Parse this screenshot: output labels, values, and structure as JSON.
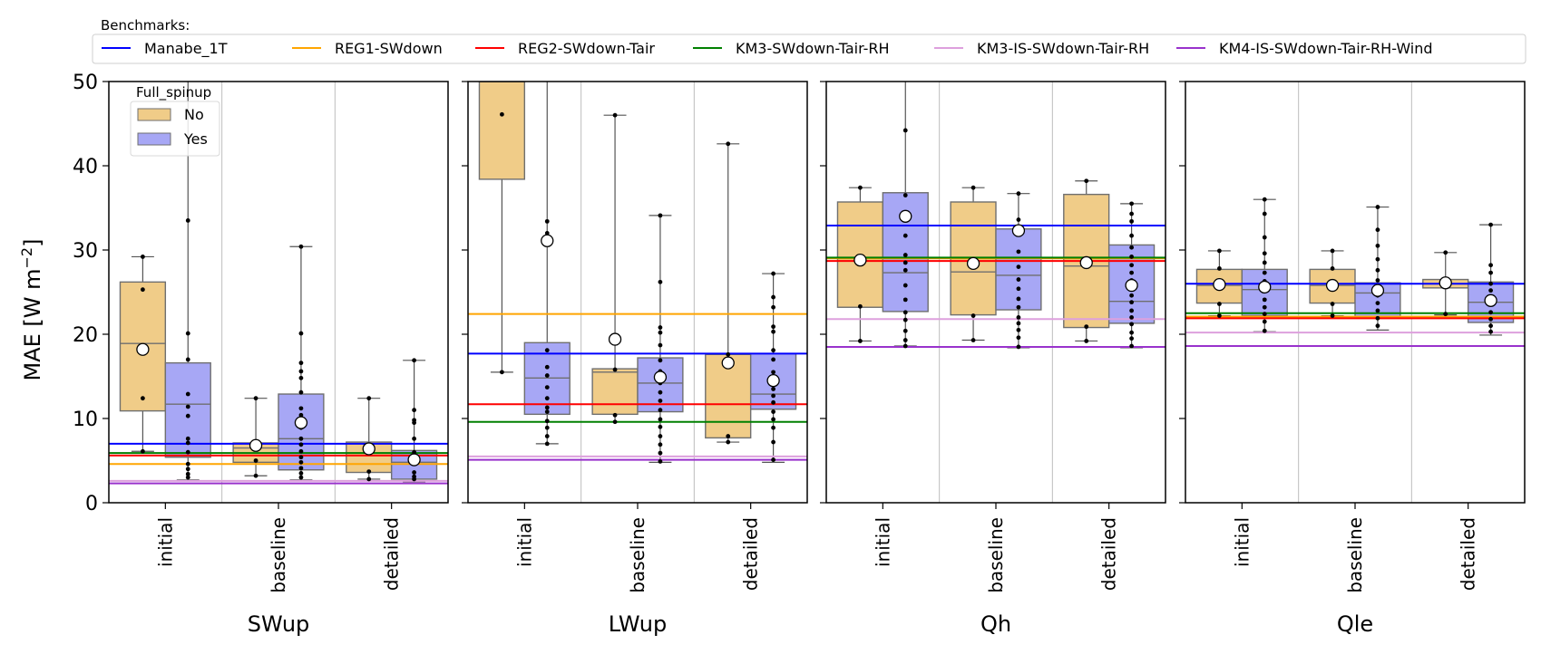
{
  "chart_data": {
    "type": "box",
    "ylabel": "MAE [W m$^{-2}$]",
    "ylabel_text": "MAE [W m",
    "ylabel_sup": "−2",
    "ylabel_close": "]",
    "ylim": [
      0,
      50
    ],
    "yticks": [
      "0",
      "10",
      "20",
      "30",
      "40",
      "50"
    ],
    "categories": [
      "initial",
      "baseline",
      "detailed"
    ],
    "benchmark_legend": {
      "title": "Benchmarks:",
      "placement": "top",
      "entries": [
        {
          "name": "Manabe_1T",
          "color": "#0000ff"
        },
        {
          "name": "REG1-SWdown",
          "color": "#ffa500"
        },
        {
          "name": "REG2-SWdown-Tair",
          "color": "#ff0000"
        },
        {
          "name": "KM3-SWdown-Tair-RH",
          "color": "#008000"
        },
        {
          "name": "KM3-IS-SWdown-Tair-RH",
          "color": "#dda0dd"
        },
        {
          "name": "KM4-IS-SWdown-Tair-RH-Wind",
          "color": "#9932cc"
        }
      ]
    },
    "hue_legend": {
      "title": "Full_spinup",
      "placement": "upper-left of first panel",
      "entries": [
        {
          "name": "No",
          "color": "#f0cc88"
        },
        {
          "name": "Yes",
          "color": "#a7a7f5"
        }
      ]
    },
    "panels": [
      {
        "xlabel": "SWup",
        "benchmarks": [
          7.0,
          4.6,
          5.6,
          5.9,
          2.6,
          2.3
        ],
        "boxes": [
          {
            "category": "initial",
            "hue": "No",
            "q1": 10.9,
            "median": 18.9,
            "q3": 26.2,
            "whisker_low": 6.1,
            "whisker_high": 29.2,
            "mean": 18.2,
            "points": [
              29.2,
              25.3,
              12.4,
              6.1
            ]
          },
          {
            "category": "initial",
            "hue": "Yes",
            "q1": 5.4,
            "median": 11.7,
            "q3": 16.6,
            "whisker_low": 2.7,
            "whisker_high": 50,
            "mean": null,
            "points": [
              33.5,
              20.1,
              17.0,
              12.9,
              11.4,
              10.3,
              7.6,
              7.1,
              6.0,
              4.6,
              4.0,
              3.4,
              3.0
            ]
          },
          {
            "category": "baseline",
            "hue": "No",
            "q1": 4.8,
            "median": 6.5,
            "q3": 7.1,
            "whisker_low": 3.2,
            "whisker_high": 12.4,
            "mean": 6.8,
            "points": [
              12.4,
              7.0,
              6.6,
              5.0,
              3.2
            ]
          },
          {
            "category": "baseline",
            "hue": "Yes",
            "q1": 3.9,
            "median": 7.6,
            "q3": 12.9,
            "whisker_low": 2.7,
            "whisker_high": 30.4,
            "mean": 9.5,
            "points": [
              30.4,
              20.1,
              16.6,
              15.6,
              14.8,
              13.1,
              11.2,
              10.4,
              8.9,
              7.6,
              6.9,
              6.1,
              5.4,
              4.8,
              4.1,
              3.5,
              3.0
            ]
          },
          {
            "category": "detailed",
            "hue": "No",
            "q1": 3.6,
            "median": 5.9,
            "q3": 7.2,
            "whisker_low": 2.8,
            "whisker_high": 12.4,
            "mean": 6.4,
            "points": [
              12.4,
              6.9,
              6.5,
              3.7,
              2.8
            ]
          },
          {
            "category": "detailed",
            "hue": "Yes",
            "q1": 2.8,
            "median": 4.8,
            "q3": 6.2,
            "whisker_low": 2.5,
            "whisker_high": 16.9,
            "mean": 5.1,
            "points": [
              16.9,
              11.0,
              9.8,
              9.5,
              7.6,
              6.0,
              5.2,
              4.6,
              3.6,
              3.1,
              2.8
            ]
          }
        ]
      },
      {
        "xlabel": "LWup",
        "benchmarks": [
          17.7,
          22.4,
          11.7,
          9.6,
          5.5,
          5.1
        ],
        "boxes": [
          {
            "category": "initial",
            "hue": "No",
            "q1": 38.4,
            "median": 50,
            "q3": 50,
            "whisker_low": 15.5,
            "whisker_high": 50,
            "mean": null,
            "points": [
              46.1,
              15.5
            ]
          },
          {
            "category": "initial",
            "hue": "Yes",
            "q1": 10.5,
            "median": 14.8,
            "q3": 19.0,
            "whisker_low": 7.0,
            "whisker_high": 50,
            "mean": 31.1,
            "points": [
              33.4,
              32.0,
              18.1,
              16.1,
              15.1,
              13.7,
              12.4,
              11.3,
              10.8,
              9.7,
              8.9,
              7.9,
              7.0
            ]
          },
          {
            "category": "baseline",
            "hue": "No",
            "q1": 10.5,
            "median": 15.5,
            "q3": 15.9,
            "whisker_low": 9.6,
            "whisker_high": 46.0,
            "mean": 19.4,
            "points": [
              46.0,
              15.8,
              10.4,
              9.6
            ]
          },
          {
            "category": "baseline",
            "hue": "Yes",
            "q1": 10.8,
            "median": 14.2,
            "q3": 17.2,
            "whisker_low": 4.8,
            "whisker_high": 34.1,
            "mean": 14.9,
            "points": [
              34.1,
              26.2,
              20.8,
              20.2,
              18.7,
              16.9,
              15.6,
              14.2,
              13.1,
              12.1,
              11.0,
              9.9,
              9.0,
              7.9,
              6.9,
              5.9,
              4.9
            ]
          },
          {
            "category": "detailed",
            "hue": "No",
            "q1": 7.7,
            "median": 17.6,
            "q3": 17.7,
            "whisker_low": 7.2,
            "whisker_high": 42.6,
            "mean": 16.6,
            "points": [
              42.6,
              17.6,
              7.9,
              7.2
            ]
          },
          {
            "category": "detailed",
            "hue": "Yes",
            "q1": 11.1,
            "median": 12.9,
            "q3": 17.7,
            "whisker_low": 4.8,
            "whisker_high": 27.2,
            "mean": 14.5,
            "points": [
              27.2,
              24.4,
              23.2,
              20.9,
              20.3,
              18.1,
              17.0,
              15.5,
              14.5,
              13.5,
              12.7,
              11.9,
              10.8,
              9.9,
              8.9,
              7.2,
              5.1
            ]
          }
        ]
      },
      {
        "xlabel": "Qh",
        "benchmarks": [
          32.9,
          29.0,
          28.7,
          29.1,
          21.8,
          18.5
        ],
        "boxes": [
          {
            "category": "initial",
            "hue": "No",
            "q1": 23.2,
            "median": 28.7,
            "q3": 35.7,
            "whisker_low": 19.2,
            "whisker_high": 37.4,
            "mean": 28.8,
            "points": [
              37.4,
              28.8,
              23.3,
              19.2
            ]
          },
          {
            "category": "initial",
            "hue": "Yes",
            "q1": 22.7,
            "median": 27.3,
            "q3": 36.8,
            "whisker_low": 18.6,
            "whisker_high": 50,
            "mean": 34.0,
            "points": [
              44.2,
              36.5,
              34.1,
              31.7,
              29.4,
              28.5,
              27.6,
              25.8,
              24.1,
              22.6,
              21.7,
              20.4,
              19.3,
              18.6
            ]
          },
          {
            "category": "baseline",
            "hue": "No",
            "q1": 22.3,
            "median": 27.4,
            "q3": 35.7,
            "whisker_low": 19.3,
            "whisker_high": 37.4,
            "mean": 28.4,
            "points": [
              37.4,
              28.3,
              22.2,
              19.3
            ]
          },
          {
            "category": "baseline",
            "hue": "Yes",
            "q1": 22.9,
            "median": 27.0,
            "q3": 32.5,
            "whisker_low": 18.4,
            "whisker_high": 36.7,
            "mean": 32.3,
            "points": [
              36.7,
              33.6,
              31.9,
              29.8,
              28.0,
              26.5,
              25.4,
              24.2,
              23.2,
              22.0,
              21.3,
              20.5,
              19.6,
              18.5
            ]
          },
          {
            "category": "detailed",
            "hue": "No",
            "q1": 20.8,
            "median": 28.1,
            "q3": 36.6,
            "whisker_low": 19.2,
            "whisker_high": 38.2,
            "mean": 28.5,
            "points": [
              38.2,
              28.4,
              20.9,
              19.2
            ]
          },
          {
            "category": "detailed",
            "hue": "Yes",
            "q1": 21.3,
            "median": 23.9,
            "q3": 30.6,
            "whisker_low": 18.4,
            "whisker_high": 35.5,
            "mean": 25.8,
            "points": [
              35.5,
              34.3,
              33.4,
              31.7,
              30.3,
              29.2,
              28.2,
              27.3,
              26.4,
              25.5,
              24.6,
              23.8,
              22.8,
              22.0,
              21.2,
              20.2,
              19.5,
              18.6
            ]
          }
        ]
      },
      {
        "xlabel": "Qle",
        "benchmarks": [
          26.0,
          22.1,
          21.9,
          22.5,
          20.2,
          18.6
        ],
        "boxes": [
          {
            "category": "initial",
            "hue": "No",
            "q1": 23.7,
            "median": 25.8,
            "q3": 27.7,
            "whisker_low": 22.2,
            "whisker_high": 29.9,
            "mean": 25.9,
            "points": [
              29.9,
              27.8,
              25.7,
              23.6,
              22.2
            ]
          },
          {
            "category": "initial",
            "hue": "Yes",
            "q1": 22.2,
            "median": 25.3,
            "q3": 27.7,
            "whisker_low": 20.3,
            "whisker_high": 36.0,
            "mean": 25.6,
            "points": [
              36.0,
              34.3,
              31.5,
              29.6,
              28.5,
              27.3,
              26.3,
              25.2,
              24.1,
              23.2,
              22.4,
              21.5,
              20.4
            ]
          },
          {
            "category": "baseline",
            "hue": "No",
            "q1": 23.7,
            "median": 25.8,
            "q3": 27.7,
            "whisker_low": 22.2,
            "whisker_high": 29.9,
            "mean": 25.8,
            "points": [
              29.9,
              27.8,
              25.8,
              23.6,
              22.2
            ]
          },
          {
            "category": "baseline",
            "hue": "Yes",
            "q1": 21.9,
            "median": 24.9,
            "q3": 26.1,
            "whisker_low": 20.5,
            "whisker_high": 35.1,
            "mean": 25.2,
            "points": [
              35.1,
              32.4,
              30.5,
              28.9,
              27.6,
              26.4,
              25.5,
              24.6,
              23.7,
              22.8,
              21.9,
              21.0
            ]
          },
          {
            "category": "detailed",
            "hue": "No",
            "q1": 25.5,
            "median": 26.0,
            "q3": 26.5,
            "whisker_low": 22.3,
            "whisker_high": 29.7,
            "mean": 26.1,
            "points": [
              29.7,
              26.2,
              25.8,
              22.4
            ]
          },
          {
            "category": "detailed",
            "hue": "Yes",
            "q1": 21.4,
            "median": 23.8,
            "q3": 26.2,
            "whisker_low": 19.9,
            "whisker_high": 33.0,
            "mean": 24.0,
            "points": [
              33.0,
              28.2,
              27.3,
              26.0,
              25.2,
              24.4,
              23.6,
              22.6,
              21.8,
              21.0,
              20.3
            ]
          }
        ]
      }
    ]
  }
}
